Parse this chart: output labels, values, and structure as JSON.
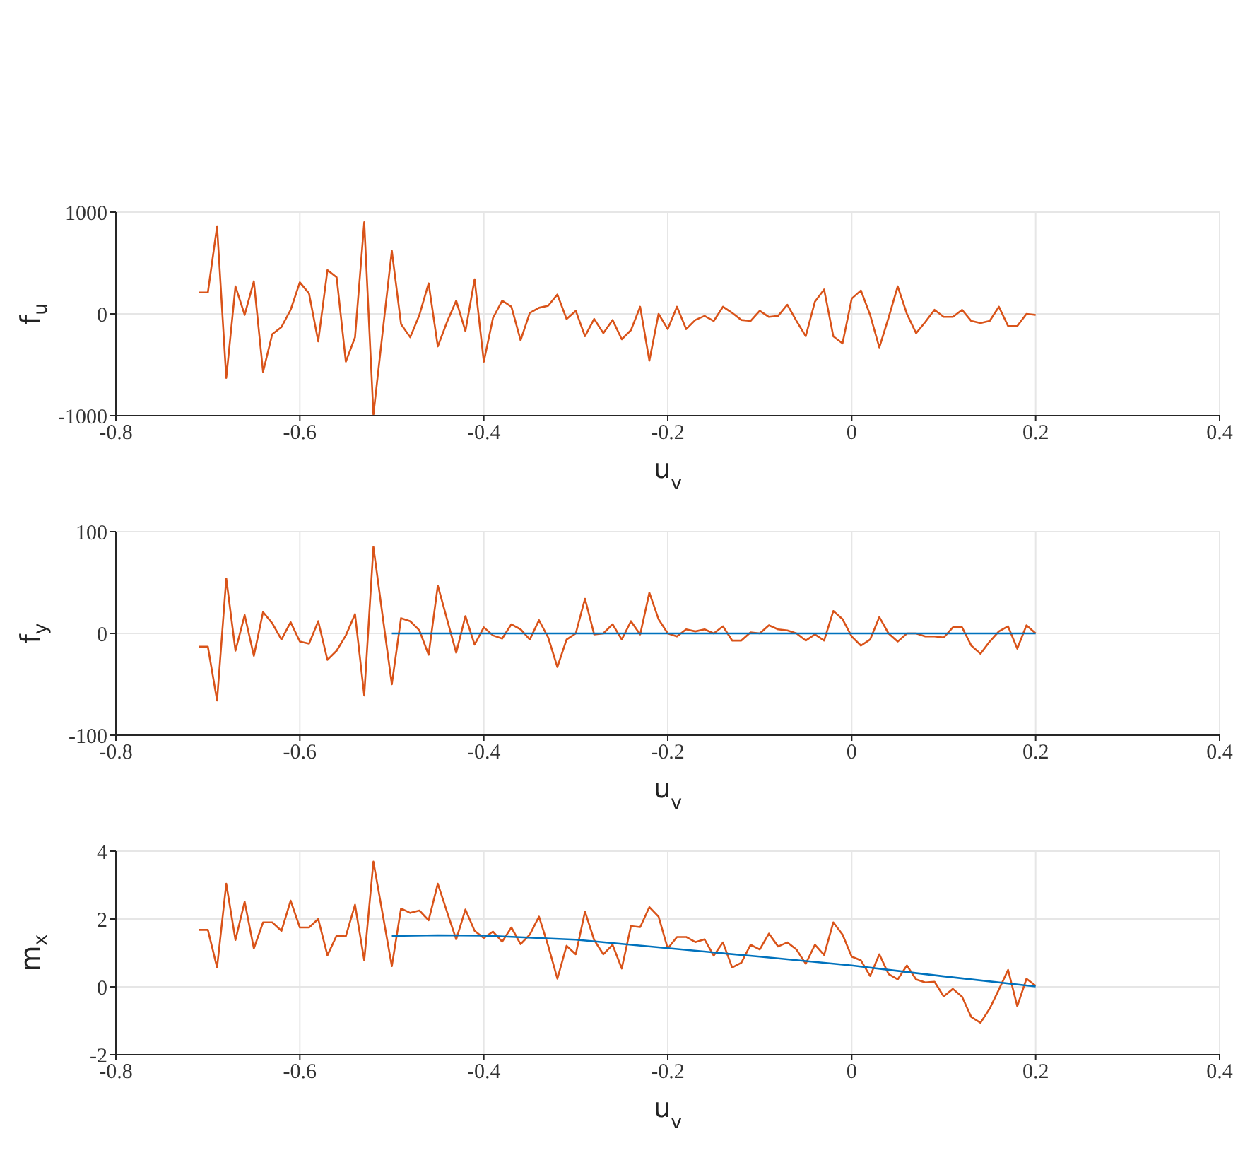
{
  "chart_data": [
    {
      "type": "line",
      "xlabel": "u$_{v}$",
      "ylabel": "f$_{u}$",
      "xlim": [
        -0.8,
        0.4
      ],
      "xticks": [
        -0.8,
        -0.6,
        -0.4,
        -0.2,
        0,
        0.2,
        0.4
      ],
      "ylim": [
        -1000,
        1000
      ],
      "yticks": [
        -1000,
        0,
        1000
      ],
      "grid": true,
      "marker": "none",
      "line_style": "solid",
      "x": [
        -0.71,
        -0.7,
        -0.69,
        -0.68,
        -0.67,
        -0.66,
        -0.65,
        -0.64,
        -0.63,
        -0.62,
        -0.61,
        -0.6,
        -0.59,
        -0.58,
        -0.57,
        -0.56,
        -0.55,
        -0.54,
        -0.53,
        -0.52,
        -0.51,
        -0.5,
        -0.49,
        -0.48,
        -0.47,
        -0.46,
        -0.45,
        -0.44,
        -0.43,
        -0.42,
        -0.41,
        -0.4,
        -0.39,
        -0.38,
        -0.37,
        -0.36,
        -0.35,
        -0.34,
        -0.33,
        -0.32,
        -0.31,
        -0.3,
        -0.29,
        -0.28,
        -0.27,
        -0.26,
        -0.25,
        -0.24,
        -0.23,
        -0.22,
        -0.21,
        -0.2,
        -0.19,
        -0.18,
        -0.17,
        -0.16,
        -0.15,
        -0.14,
        -0.13,
        -0.12,
        -0.11,
        -0.1,
        -0.09,
        -0.08,
        -0.07,
        -0.06,
        -0.05,
        -0.04,
        -0.03,
        -0.02,
        -0.01,
        0,
        0.01,
        0.02,
        0.03,
        0.04,
        0.05,
        0.06,
        0.07,
        0.08,
        0.09,
        0.1,
        0.11,
        0.12,
        0.13,
        0.14,
        0.15,
        0.16,
        0.17,
        0.18,
        0.19,
        0.2
      ],
      "series": [
        {
          "color": "#d95319",
          "values": [
            210,
            210,
            860,
            -630,
            270,
            -10,
            320,
            -570,
            -200,
            -130,
            40,
            310,
            200,
            -270,
            430,
            360,
            -470,
            -230,
            900,
            -990,
            -180,
            620,
            -100,
            -230,
            -10,
            300,
            -320,
            -80,
            130,
            -170,
            340,
            -470,
            -40,
            130,
            70,
            -260,
            10,
            60,
            80,
            190,
            -50,
            30,
            -220,
            -50,
            -190,
            -60,
            -250,
            -160,
            70,
            -460,
            0,
            -150,
            70,
            -150,
            -60,
            -20,
            -70,
            70,
            10,
            -60,
            -70,
            30,
            -30,
            -20,
            90,
            -70,
            -220,
            120,
            240,
            -220,
            -290,
            150,
            230,
            -10,
            -330,
            -40,
            270,
            0,
            -190,
            -80,
            40,
            -30,
            -30,
            40,
            -70,
            -90,
            -70,
            70,
            -120,
            -120,
            0,
            -10
          ]
        }
      ]
    },
    {
      "type": "line",
      "xlabel": "u$_{v}$",
      "ylabel": "f$_{y}$",
      "xlim": [
        -0.8,
        0.4
      ],
      "xticks": [
        -0.8,
        -0.6,
        -0.4,
        -0.2,
        0,
        0.2,
        0.4
      ],
      "ylim": [
        -100,
        100
      ],
      "yticks": [
        -100,
        0,
        100
      ],
      "grid": true,
      "marker": "none",
      "line_style": "solid",
      "x": [
        -0.71,
        -0.7,
        -0.69,
        -0.68,
        -0.67,
        -0.66,
        -0.65,
        -0.64,
        -0.63,
        -0.62,
        -0.61,
        -0.6,
        -0.59,
        -0.58,
        -0.57,
        -0.56,
        -0.55,
        -0.54,
        -0.53,
        -0.52,
        -0.51,
        -0.5,
        -0.49,
        -0.48,
        -0.47,
        -0.46,
        -0.45,
        -0.44,
        -0.43,
        -0.42,
        -0.41,
        -0.4,
        -0.39,
        -0.38,
        -0.37,
        -0.36,
        -0.35,
        -0.34,
        -0.33,
        -0.32,
        -0.31,
        -0.3,
        -0.29,
        -0.28,
        -0.27,
        -0.26,
        -0.25,
        -0.24,
        -0.23,
        -0.22,
        -0.21,
        -0.2,
        -0.19,
        -0.18,
        -0.17,
        -0.16,
        -0.15,
        -0.14,
        -0.13,
        -0.12,
        -0.11,
        -0.1,
        -0.09,
        -0.08,
        -0.07,
        -0.06,
        -0.05,
        -0.04,
        -0.03,
        -0.02,
        -0.01,
        0,
        0.01,
        0.02,
        0.03,
        0.04,
        0.05,
        0.06,
        0.07,
        0.08,
        0.09,
        0.1,
        0.11,
        0.12,
        0.13,
        0.14,
        0.15,
        0.16,
        0.17,
        0.18,
        0.19,
        0.2
      ],
      "series": [
        {
          "color": "#d95319",
          "values": [
            -13,
            -13,
            -66,
            54,
            -17,
            18,
            -22,
            21,
            10,
            -6,
            11,
            -8,
            -10,
            12,
            -26,
            -17,
            -2,
            19,
            -61,
            85,
            17,
            -50,
            15,
            12,
            3,
            -21,
            47,
            14,
            -19,
            17,
            -11,
            6,
            -2,
            -5,
            9,
            4,
            -6,
            13,
            -4,
            -33,
            -6,
            0,
            34,
            -1,
            0,
            9,
            -6,
            12,
            -1,
            40,
            14,
            0,
            -3,
            4,
            2,
            4,
            0,
            7,
            -7,
            -7,
            1,
            0,
            8,
            4,
            3,
            0,
            -7,
            -1,
            -7,
            22,
            14,
            -3,
            -12,
            -6,
            16,
            0,
            -8,
            0,
            0,
            -3,
            -3,
            -4,
            6,
            6,
            -12,
            -20,
            -8,
            2,
            7,
            -15,
            8,
            0
          ]
        },
        {
          "type": "line",
          "color": "#0072bd",
          "x": [
            -0.5,
            0.2
          ],
          "values": [
            0,
            0
          ]
        }
      ]
    },
    {
      "type": "line",
      "xlabel": "u$_{v}$",
      "ylabel": "m$_{x}$",
      "xlim": [
        -0.8,
        0.4
      ],
      "xticks": [
        -0.8,
        -0.6,
        -0.4,
        -0.2,
        0,
        0.2,
        0.4
      ],
      "ylim": [
        -2,
        4
      ],
      "yticks": [
        -2,
        0,
        2,
        4
      ],
      "grid": true,
      "marker": "none",
      "line_style": "solid",
      "x": [
        -0.71,
        -0.7,
        -0.69,
        -0.68,
        -0.67,
        -0.66,
        -0.65,
        -0.64,
        -0.63,
        -0.62,
        -0.61,
        -0.6,
        -0.59,
        -0.58,
        -0.57,
        -0.56,
        -0.55,
        -0.54,
        -0.53,
        -0.52,
        -0.51,
        -0.5,
        -0.49,
        -0.48,
        -0.47,
        -0.46,
        -0.45,
        -0.44,
        -0.43,
        -0.42,
        -0.41,
        -0.4,
        -0.39,
        -0.38,
        -0.37,
        -0.36,
        -0.35,
        -0.34,
        -0.33,
        -0.32,
        -0.31,
        -0.3,
        -0.29,
        -0.28,
        -0.27,
        -0.26,
        -0.25,
        -0.24,
        -0.23,
        -0.22,
        -0.21,
        -0.2,
        -0.19,
        -0.18,
        -0.17,
        -0.16,
        -0.15,
        -0.14,
        -0.13,
        -0.12,
        -0.11,
        -0.1,
        -0.09,
        -0.08,
        -0.07,
        -0.06,
        -0.05,
        -0.04,
        -0.03,
        -0.02,
        -0.01,
        0,
        0.01,
        0.02,
        0.03,
        0.04,
        0.05,
        0.06,
        0.07,
        0.08,
        0.09,
        0.1,
        0.11,
        0.12,
        0.13,
        0.14,
        0.15,
        0.16,
        0.17,
        0.18,
        0.19,
        0.2
      ],
      "series": [
        {
          "color": "#d95319",
          "values": [
            1.68,
            1.68,
            0.57,
            3.04,
            1.38,
            2.51,
            1.13,
            1.9,
            1.9,
            1.65,
            2.54,
            1.75,
            1.75,
            2.0,
            0.93,
            1.51,
            1.49,
            2.42,
            0.78,
            3.69,
            2.15,
            0.61,
            2.31,
            2.18,
            2.25,
            1.96,
            3.04,
            2.21,
            1.4,
            2.28,
            1.65,
            1.44,
            1.63,
            1.33,
            1.75,
            1.26,
            1.54,
            2.07,
            1.21,
            0.24,
            1.21,
            0.96,
            2.22,
            1.38,
            0.96,
            1.24,
            0.54,
            1.79,
            1.76,
            2.35,
            2.07,
            1.13,
            1.47,
            1.47,
            1.32,
            1.4,
            0.92,
            1.31,
            0.57,
            0.71,
            1.24,
            1.1,
            1.57,
            1.19,
            1.31,
            1.1,
            0.68,
            1.24,
            0.94,
            1.9,
            1.54,
            0.89,
            0.78,
            0.32,
            0.96,
            0.38,
            0.22,
            0.63,
            0.22,
            0.13,
            0.15,
            -0.28,
            -0.06,
            -0.29,
            -0.89,
            -1.06,
            -0.64,
            -0.08,
            0.5,
            -0.57,
            0.24,
            0.03
          ]
        },
        {
          "type": "line",
          "color": "#0072bd",
          "x": [
            -0.5,
            -0.45,
            -0.4,
            -0.3,
            -0.2,
            -0.1,
            0,
            0.1,
            0.2
          ],
          "values": [
            1.5,
            1.52,
            1.51,
            1.39,
            1.14,
            0.89,
            0.63,
            0.31,
            0.01
          ]
        }
      ]
    }
  ]
}
